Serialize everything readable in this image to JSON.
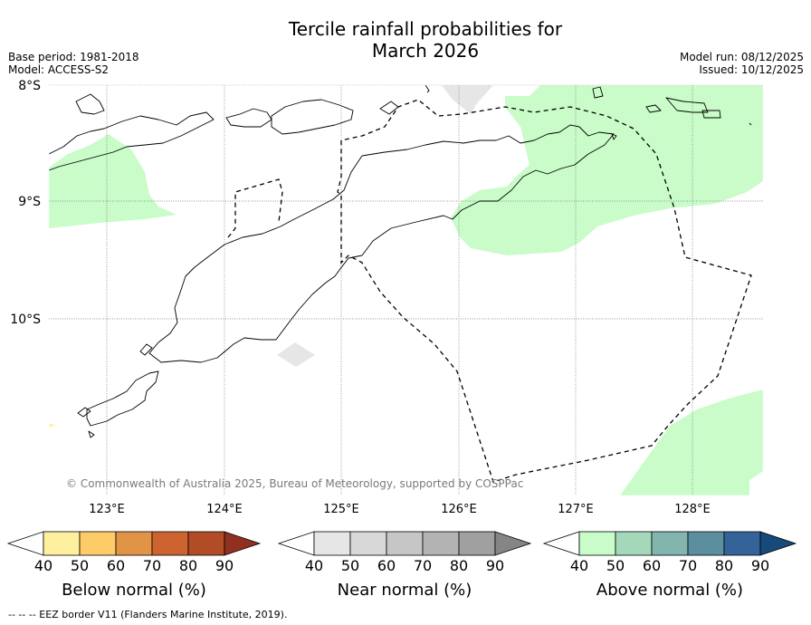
{
  "title": {
    "line1": "Tercile rainfall probabilities for",
    "line2": "March 2026"
  },
  "meta": {
    "base_period": "Base period: 1981-2018",
    "model": "Model: ACCESS-S2",
    "model_run": "Model run: 08/12/2025",
    "issued": "Issued: 10/12/2025"
  },
  "map": {
    "lat_labels": [
      "8°S",
      "9°S",
      "10°S"
    ],
    "lon_labels": [
      "123°E",
      "124°E",
      "125°E",
      "126°E",
      "127°E",
      "128°E"
    ],
    "copyright": "© Commonwealth of Australia 2025, Bureau of Meteorology, supported by COSPPac",
    "colors": {
      "above_40_50": "#c9fcc9",
      "near_40_50": "#e6e6e6",
      "below_40_50": "#fff0a0",
      "coastline": "#000000"
    }
  },
  "legends": [
    {
      "label": "Below normal (%)",
      "ticks": [
        "40",
        "50",
        "60",
        "70",
        "80",
        "90"
      ],
      "colors": [
        "#ffffff",
        "#fff0a0",
        "#fdcb68",
        "#e29446",
        "#cd6430",
        "#b14c27",
        "#913020"
      ]
    },
    {
      "label": "Near normal (%)",
      "ticks": [
        "40",
        "50",
        "60",
        "70",
        "80",
        "90"
      ],
      "colors": [
        "#ffffff",
        "#e6e6e6",
        "#d8d8d8",
        "#c6c6c6",
        "#b3b3b3",
        "#a0a0a0",
        "#858585"
      ]
    },
    {
      "label": "Above normal (%)",
      "ticks": [
        "40",
        "50",
        "60",
        "70",
        "80",
        "90"
      ],
      "colors": [
        "#ffffff",
        "#c9fcc9",
        "#a5d8bb",
        "#82b5ae",
        "#5b8e9e",
        "#34639a",
        "#17497a"
      ]
    }
  ],
  "footer": {
    "eez_note": "--  --  -- EEZ border V11 (Flanders Marine Institute, 2019)."
  }
}
